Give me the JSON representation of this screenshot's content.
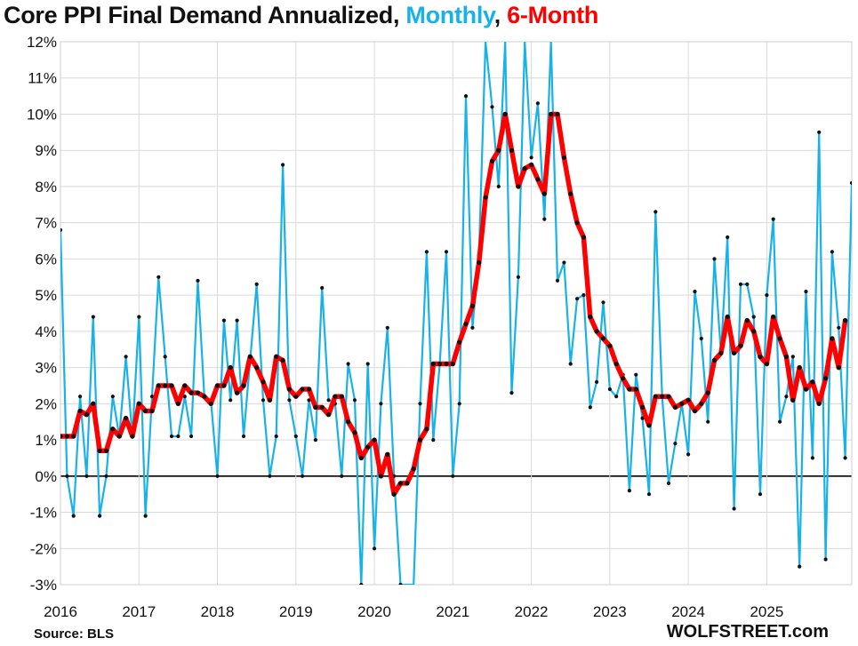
{
  "header": {
    "title_main": "Core PPI Final Demand Annualized,",
    "title_monthly": "Monthly",
    "title_sep": ",",
    "title_6month": "6-Month"
  },
  "footer": {
    "source": "Source: BLS",
    "brand": "WOLFSTREET.com"
  },
  "colors": {
    "monthly": "#19b2e6",
    "six_month": "#ff0000",
    "markers": "#111111",
    "grid": "#d9d9d9"
  },
  "chart_data": {
    "type": "line",
    "title": "Core PPI Final Demand Annualized, Monthly, 6-Month",
    "xlabel": "",
    "ylabel": "",
    "ylim": [
      -3,
      12
    ],
    "y_ticks": [
      "12%",
      "11%",
      "10%",
      "9%",
      "8%",
      "7%",
      "6%",
      "5%",
      "4%",
      "3%",
      "2%",
      "1%",
      "0%",
      "-1%",
      "-2%",
      "-3%"
    ],
    "x_ticks": [
      "2016",
      "2017",
      "2018",
      "2019",
      "2020",
      "2021",
      "2022",
      "2023",
      "2024",
      "2025"
    ],
    "start": "2016-01",
    "grid": true,
    "series": [
      {
        "name": "Monthly",
        "values": [
          6.8,
          0.0,
          -1.1,
          2.2,
          0.0,
          4.4,
          -1.1,
          0.0,
          2.2,
          1.1,
          3.3,
          1.1,
          4.4,
          -1.1,
          2.2,
          5.5,
          3.3,
          1.1,
          1.1,
          2.2,
          1.1,
          5.4,
          2.2,
          2.1,
          0.0,
          4.3,
          2.1,
          4.3,
          1.1,
          3.2,
          5.3,
          2.1,
          0.0,
          1.1,
          8.6,
          2.1,
          1.1,
          0.0,
          2.1,
          1.0,
          5.2,
          2.1,
          2.0,
          0.0,
          3.1,
          2.1,
          -3.0,
          3.1,
          -2.0,
          2.0,
          4.1,
          0.0,
          -3.0,
          -3.5,
          -3.6,
          2.0,
          6.2,
          1.0,
          3.1,
          6.2,
          0.0,
          2.0,
          10.5,
          4.1,
          6.1,
          13.5,
          10.2,
          8.0,
          13.5,
          2.3,
          5.5,
          13.5,
          8.8,
          10.3,
          7.1,
          13.5,
          5.4,
          5.9,
          3.1,
          4.9,
          5.0,
          1.9,
          2.6,
          4.8,
          2.4,
          2.2,
          2.8,
          -0.4,
          2.8,
          1.6,
          -0.5,
          7.3,
          2.2,
          -0.2,
          0.9,
          2.0,
          0.6,
          5.1,
          3.8,
          1.5,
          6.0,
          3.4,
          6.6,
          -0.9,
          5.3,
          5.3,
          4.4,
          -0.5,
          5.0,
          7.1,
          1.5,
          2.2,
          3.3,
          -2.5,
          5.1,
          0.5,
          9.5,
          -2.3,
          6.2,
          4.1,
          0.5,
          8.1
        ]
      },
      {
        "name": "6-Month",
        "values": [
          1.1,
          1.1,
          1.1,
          1.8,
          1.7,
          2.0,
          0.7,
          0.7,
          1.3,
          1.1,
          1.6,
          1.1,
          2.0,
          1.8,
          1.8,
          2.5,
          2.5,
          2.5,
          2.0,
          2.5,
          2.3,
          2.3,
          2.2,
          2.0,
          2.5,
          2.5,
          3.0,
          2.3,
          2.5,
          3.3,
          3.0,
          2.6,
          2.1,
          3.3,
          3.2,
          2.4,
          2.2,
          2.4,
          2.4,
          1.9,
          1.9,
          1.7,
          2.2,
          2.2,
          1.5,
          1.2,
          0.5,
          0.8,
          1.0,
          0.0,
          0.6,
          -0.5,
          -0.2,
          -0.2,
          0.2,
          1.0,
          1.3,
          3.1,
          3.1,
          3.1,
          3.1,
          3.7,
          4.2,
          4.7,
          5.9,
          7.7,
          8.7,
          9.0,
          10.0,
          9.0,
          8.0,
          8.5,
          8.6,
          8.2,
          7.8,
          10.0,
          10.0,
          8.8,
          7.8,
          7.0,
          6.6,
          4.4,
          4.0,
          3.8,
          3.6,
          3.1,
          2.7,
          2.4,
          2.4,
          1.9,
          1.4,
          2.2,
          2.2,
          2.2,
          1.9,
          2.0,
          2.1,
          1.8,
          2.0,
          2.3,
          3.2,
          3.4,
          4.4,
          3.4,
          3.6,
          4.3,
          4.0,
          3.3,
          3.1,
          4.4,
          3.8,
          3.3,
          2.1,
          3.0,
          2.4,
          2.6,
          2.0,
          2.7,
          3.8,
          3.0,
          4.3
        ]
      }
    ]
  }
}
